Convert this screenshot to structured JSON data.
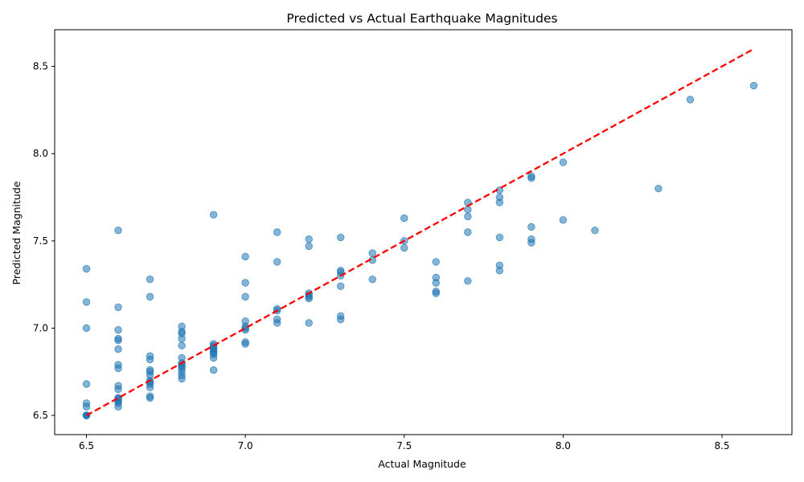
{
  "chart_data": {
    "type": "scatter",
    "title": "Predicted vs Actual Earthquake Magnitudes",
    "xlabel": "Actual Magnitude",
    "ylabel": "Predicted Magnitude",
    "xlim": [
      6.4,
      8.72
    ],
    "ylim": [
      6.39,
      8.71
    ],
    "xticks": [
      "6.5",
      "7.0",
      "7.5",
      "8.0",
      "8.5"
    ],
    "yticks": [
      "6.5",
      "7.0",
      "7.5",
      "8.0",
      "8.5"
    ],
    "grid": false,
    "legend": "none",
    "colors": {
      "points": "#1f77b4",
      "reference_line": "#ff0000"
    },
    "reference_line": {
      "style": "dashed",
      "from": [
        6.5,
        6.5
      ],
      "to": [
        8.6,
        8.6
      ]
    },
    "series": [
      {
        "points": [
          [
            6.5,
            6.5
          ],
          [
            6.5,
            6.5
          ],
          [
            6.5,
            6.5
          ],
          [
            6.5,
            6.5
          ],
          [
            6.5,
            6.55
          ],
          [
            6.5,
            6.57
          ],
          [
            6.5,
            6.68
          ],
          [
            6.5,
            7.0
          ],
          [
            6.5,
            7.15
          ],
          [
            6.5,
            7.34
          ],
          [
            6.6,
            6.55
          ],
          [
            6.6,
            6.57
          ],
          [
            6.6,
            6.58
          ],
          [
            6.6,
            6.59
          ],
          [
            6.6,
            6.6
          ],
          [
            6.6,
            6.6
          ],
          [
            6.6,
            6.65
          ],
          [
            6.6,
            6.67
          ],
          [
            6.6,
            6.77
          ],
          [
            6.6,
            6.79
          ],
          [
            6.6,
            6.88
          ],
          [
            6.6,
            6.93
          ],
          [
            6.6,
            6.94
          ],
          [
            6.6,
            6.99
          ],
          [
            6.6,
            7.12
          ],
          [
            6.6,
            7.56
          ],
          [
            6.7,
            6.6
          ],
          [
            6.7,
            6.61
          ],
          [
            6.7,
            6.66
          ],
          [
            6.7,
            6.68
          ],
          [
            6.7,
            6.69
          ],
          [
            6.7,
            6.7
          ],
          [
            6.7,
            6.73
          ],
          [
            6.7,
            6.75
          ],
          [
            6.7,
            6.76
          ],
          [
            6.7,
            6.82
          ],
          [
            6.7,
            6.84
          ],
          [
            6.7,
            7.18
          ],
          [
            6.7,
            7.28
          ],
          [
            6.8,
            6.71
          ],
          [
            6.8,
            6.73
          ],
          [
            6.8,
            6.75
          ],
          [
            6.8,
            6.77
          ],
          [
            6.8,
            6.78
          ],
          [
            6.8,
            6.79
          ],
          [
            6.8,
            6.8
          ],
          [
            6.8,
            6.83
          ],
          [
            6.8,
            6.9
          ],
          [
            6.8,
            6.94
          ],
          [
            6.8,
            6.97
          ],
          [
            6.8,
            6.98
          ],
          [
            6.8,
            7.01
          ],
          [
            6.9,
            6.76
          ],
          [
            6.9,
            6.83
          ],
          [
            6.9,
            6.85
          ],
          [
            6.9,
            6.86
          ],
          [
            6.9,
            6.87
          ],
          [
            6.9,
            6.88
          ],
          [
            6.9,
            6.89
          ],
          [
            6.9,
            6.9
          ],
          [
            6.9,
            6.91
          ],
          [
            6.9,
            7.65
          ],
          [
            7.0,
            6.91
          ],
          [
            7.0,
            6.92
          ],
          [
            7.0,
            6.99
          ],
          [
            7.0,
            7.0
          ],
          [
            7.0,
            7.01
          ],
          [
            7.0,
            7.04
          ],
          [
            7.0,
            7.18
          ],
          [
            7.0,
            7.26
          ],
          [
            7.0,
            7.41
          ],
          [
            7.1,
            7.03
          ],
          [
            7.1,
            7.05
          ],
          [
            7.1,
            7.1
          ],
          [
            7.1,
            7.11
          ],
          [
            7.1,
            7.38
          ],
          [
            7.1,
            7.55
          ],
          [
            7.2,
            7.03
          ],
          [
            7.2,
            7.17
          ],
          [
            7.2,
            7.18
          ],
          [
            7.2,
            7.19
          ],
          [
            7.2,
            7.2
          ],
          [
            7.2,
            7.47
          ],
          [
            7.2,
            7.51
          ],
          [
            7.3,
            7.05
          ],
          [
            7.3,
            7.07
          ],
          [
            7.3,
            7.24
          ],
          [
            7.3,
            7.3
          ],
          [
            7.3,
            7.32
          ],
          [
            7.3,
            7.33
          ],
          [
            7.3,
            7.52
          ],
          [
            7.4,
            7.28
          ],
          [
            7.4,
            7.39
          ],
          [
            7.4,
            7.43
          ],
          [
            7.5,
            7.46
          ],
          [
            7.5,
            7.5
          ],
          [
            7.5,
            7.63
          ],
          [
            7.6,
            7.2
          ],
          [
            7.6,
            7.21
          ],
          [
            7.6,
            7.26
          ],
          [
            7.6,
            7.29
          ],
          [
            7.6,
            7.38
          ],
          [
            7.7,
            7.27
          ],
          [
            7.7,
            7.55
          ],
          [
            7.7,
            7.64
          ],
          [
            7.7,
            7.68
          ],
          [
            7.7,
            7.72
          ],
          [
            7.8,
            7.33
          ],
          [
            7.8,
            7.36
          ],
          [
            7.8,
            7.52
          ],
          [
            7.8,
            7.72
          ],
          [
            7.8,
            7.75
          ],
          [
            7.8,
            7.79
          ],
          [
            7.9,
            7.49
          ],
          [
            7.9,
            7.51
          ],
          [
            7.9,
            7.58
          ],
          [
            7.9,
            7.86
          ],
          [
            7.9,
            7.87
          ],
          [
            8.0,
            7.62
          ],
          [
            8.0,
            7.95
          ],
          [
            8.1,
            7.56
          ],
          [
            8.3,
            7.8
          ],
          [
            8.4,
            8.31
          ],
          [
            8.6,
            8.39
          ]
        ]
      }
    ]
  }
}
